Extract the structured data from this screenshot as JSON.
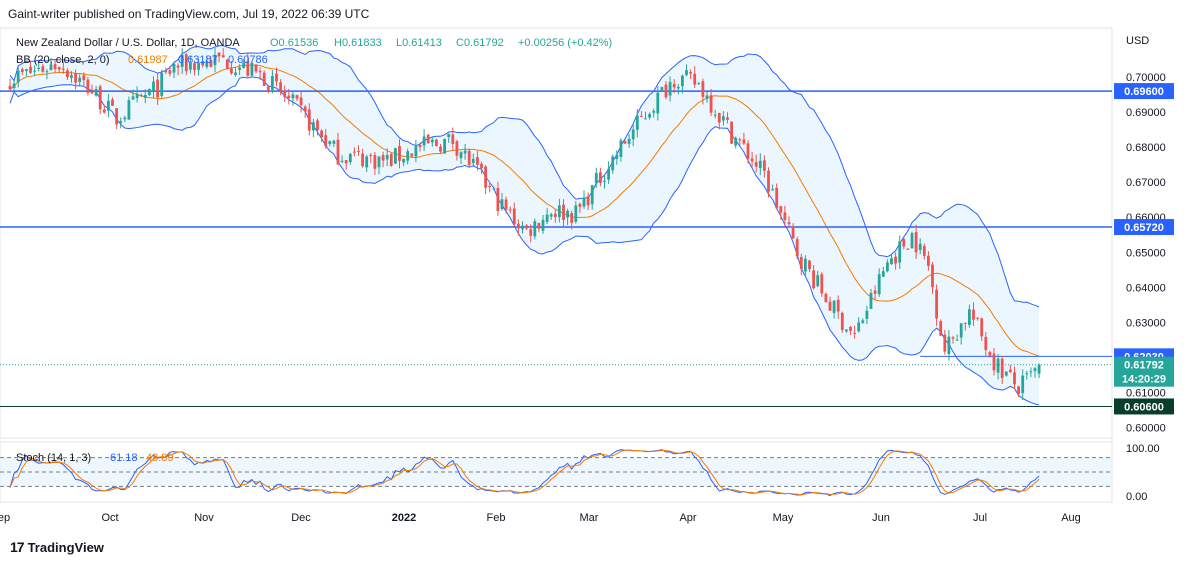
{
  "attribution": "Gaint-writer published on TradingView.com, Jul 19, 2022 06:39 UTC",
  "brand": {
    "logo": "17",
    "name": "TradingView"
  },
  "legend": {
    "symbol": "New Zealand Dollar / U.S. Dollar, 1D, OANDA",
    "open": "O0.61536",
    "high": "H0.61833",
    "low": "L0.61413",
    "close": "C0.61792",
    "change": "+0.00256 (+0.42%)",
    "bb_label": "BB (20, close, 2, 0)",
    "bb_basis": "0.61987",
    "bb_upper": "0.63187",
    "bb_lower": "0.60786",
    "stoch_label": "Stoch (14, 1, 3)",
    "stoch_k": "61.18",
    "stoch_d": "48.89"
  },
  "currency": "USD",
  "colors": {
    "up": "#26a69a",
    "down": "#ef5350",
    "basis": "#f57c00",
    "band": "#2962ff",
    "band_fill": "#e3f2fd",
    "level": "#2962ff",
    "support": "#0b3d2e",
    "stoch_k": "#2962ff",
    "stoch_d": "#f57c00"
  },
  "chart_data": {
    "type": "candlestick",
    "y_range": [
      0.597,
      0.714
    ],
    "y_ticks": [
      {
        "value": 0.7,
        "label": "0.70000"
      },
      {
        "value": 0.69,
        "label": "0.69000"
      },
      {
        "value": 0.68,
        "label": "0.68000"
      },
      {
        "value": 0.67,
        "label": "0.67000"
      },
      {
        "value": 0.66,
        "label": "0.66000"
      },
      {
        "value": 0.65,
        "label": "0.65000"
      },
      {
        "value": 0.64,
        "label": "0.64000"
      },
      {
        "value": 0.63,
        "label": "0.63000"
      },
      {
        "value": 0.61,
        "label": "0.61000"
      },
      {
        "value": 0.6,
        "label": "0.60000"
      }
    ],
    "x_labels": [
      "ep",
      "Oct",
      "Nov",
      "Dec",
      "2022",
      "Feb",
      "Mar",
      "Apr",
      "May",
      "Jun",
      "Jul",
      "Aug"
    ],
    "levels": [
      {
        "value": 0.696,
        "label": "0.69600"
      },
      {
        "value": 0.6572,
        "label": "0.65720"
      }
    ],
    "short_level": {
      "value": 0.6203,
      "label": "0.62030"
    },
    "support": {
      "value": 0.606,
      "label": "0.60600"
    },
    "last_price": {
      "value": 0.61792,
      "label": "0.61792",
      "countdown": "14:20:29"
    },
    "anchors": [
      {
        "i": 0,
        "p": 0.6995
      },
      {
        "i": 12,
        "p": 0.704
      },
      {
        "i": 20,
        "p": 0.696
      },
      {
        "i": 26,
        "p": 0.688
      },
      {
        "i": 30,
        "p": 0.692
      },
      {
        "i": 36,
        "p": 0.697
      },
      {
        "i": 40,
        "p": 0.703
      },
      {
        "i": 52,
        "p": 0.705
      },
      {
        "i": 62,
        "p": 0.7
      },
      {
        "i": 70,
        "p": 0.691
      },
      {
        "i": 80,
        "p": 0.678
      },
      {
        "i": 92,
        "p": 0.676
      },
      {
        "i": 100,
        "p": 0.68
      },
      {
        "i": 108,
        "p": 0.682
      },
      {
        "i": 112,
        "p": 0.676
      },
      {
        "i": 120,
        "p": 0.663
      },
      {
        "i": 126,
        "p": 0.656
      },
      {
        "i": 132,
        "p": 0.662
      },
      {
        "i": 138,
        "p": 0.661
      },
      {
        "i": 146,
        "p": 0.675
      },
      {
        "i": 154,
        "p": 0.688
      },
      {
        "i": 162,
        "p": 0.7
      },
      {
        "i": 168,
        "p": 0.698
      },
      {
        "i": 176,
        "p": 0.684
      },
      {
        "i": 184,
        "p": 0.672
      },
      {
        "i": 192,
        "p": 0.65
      },
      {
        "i": 200,
        "p": 0.635
      },
      {
        "i": 206,
        "p": 0.626
      },
      {
        "i": 214,
        "p": 0.647
      },
      {
        "i": 220,
        "p": 0.655
      },
      {
        "i": 224,
        "p": 0.646
      },
      {
        "i": 228,
        "p": 0.622
      },
      {
        "i": 234,
        "p": 0.633
      },
      {
        "i": 240,
        "p": 0.619
      },
      {
        "i": 246,
        "p": 0.611
      },
      {
        "i": 250,
        "p": 0.6157
      },
      {
        "i": 251,
        "p": 0.6179
      }
    ],
    "stoch": {
      "y_range": [
        0,
        100
      ],
      "y_ticks": [
        {
          "value": 100,
          "label": "100.00"
        },
        {
          "value": 0,
          "label": "0.00"
        }
      ],
      "bands": [
        80,
        50,
        20
      ]
    }
  }
}
